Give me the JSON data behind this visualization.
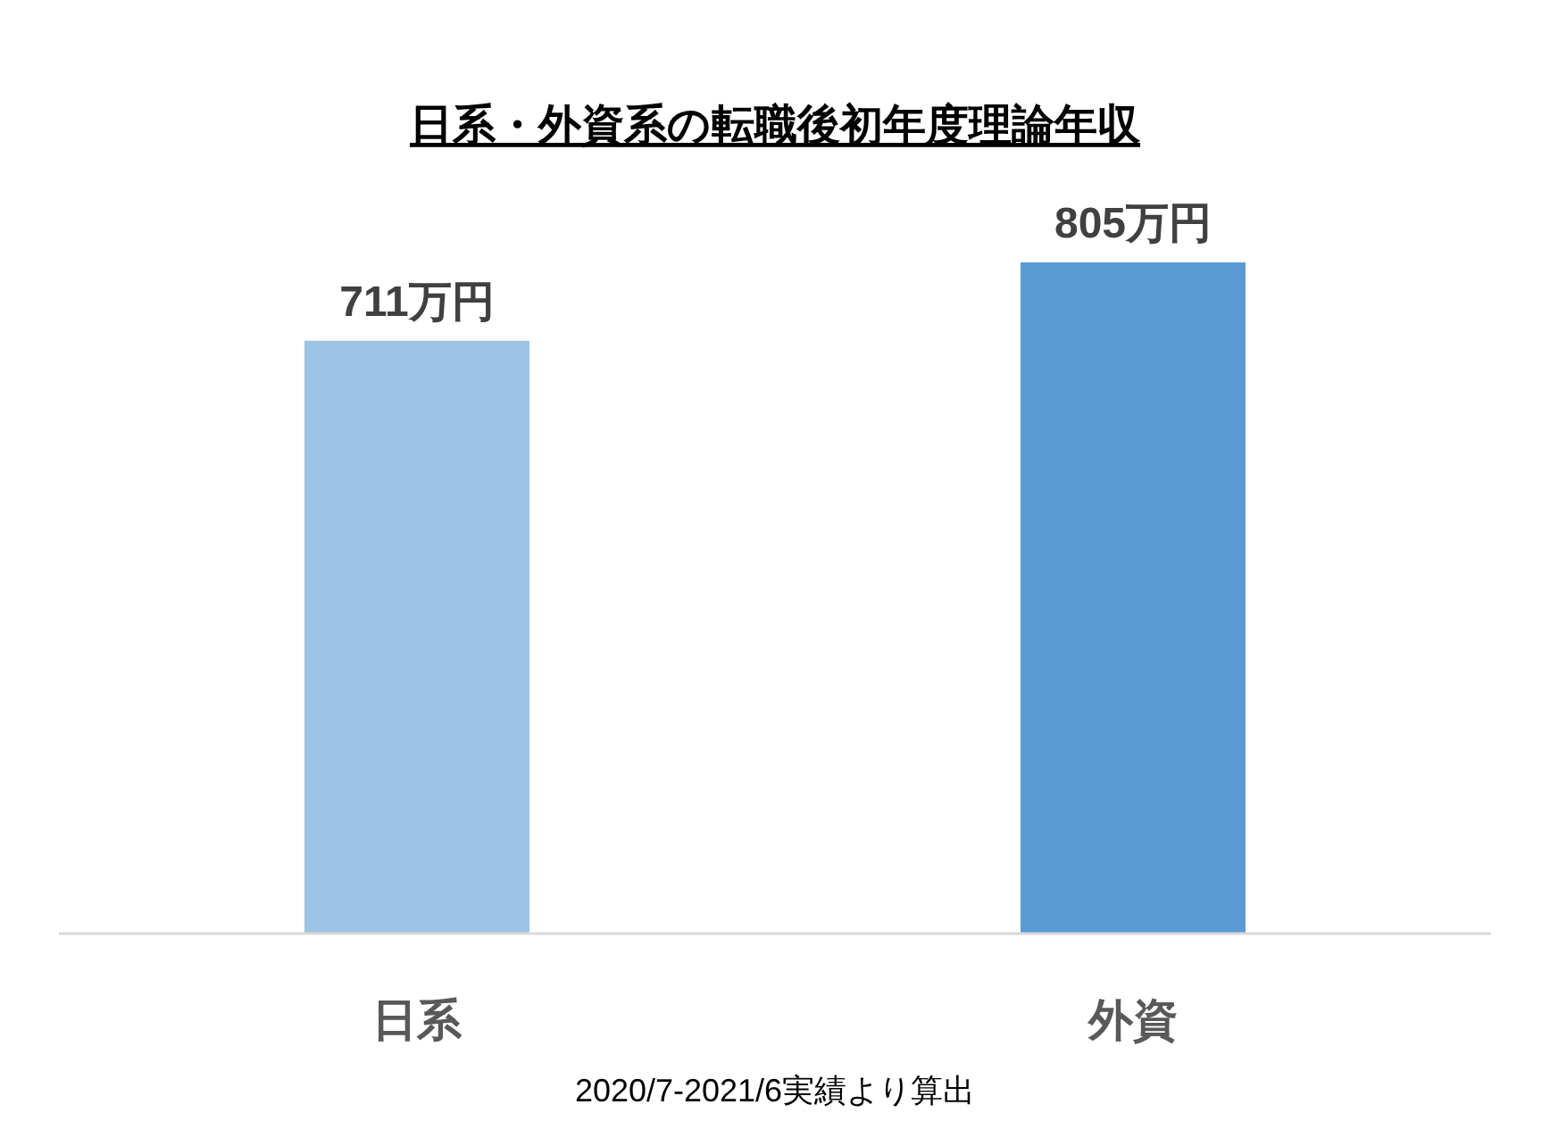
{
  "chart_data": {
    "type": "bar",
    "title": "日系・外資系の転職後初年度理論年収",
    "categories": [
      "日系",
      "外資"
    ],
    "values": [
      711,
      805
    ],
    "colors": [
      "#9dc3e6",
      "#5b9bd5"
    ],
    "value_labels": [
      "711万円",
      "805万円"
    ],
    "annotations": [
      "2020/7-2021/6実績より算出"
    ]
  }
}
